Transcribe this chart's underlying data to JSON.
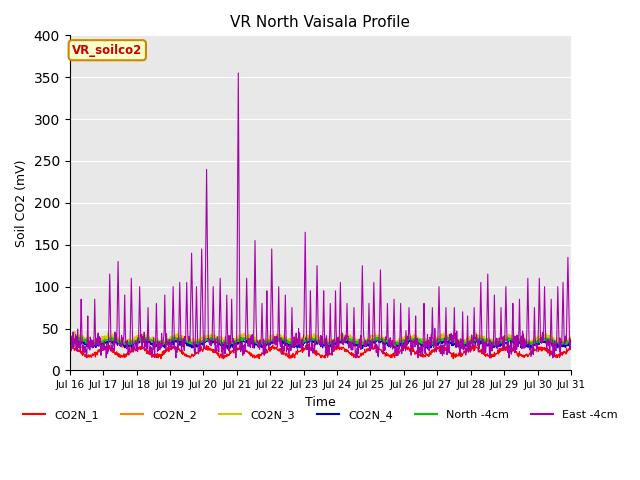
{
  "title": "VR North Vaisala Profile",
  "ylabel": "Soil CO2 (mV)",
  "xlabel": "Time",
  "annotation": "VR_soilco2",
  "ylim": [
    0,
    400
  ],
  "plot_bg": "#e8e8e8",
  "fig_bg": "#ffffff",
  "grid_color": "#ffffff",
  "series_colors": {
    "CO2N_1": "#ff0000",
    "CO2N_2": "#ff8800",
    "CO2N_3": "#cccc00",
    "CO2N_4": "#0000cc",
    "North -4cm": "#00cc00",
    "East -4cm": "#aa00aa"
  },
  "x_tick_labels": [
    "Jul 16",
    "Jul 17",
    "Jul 18",
    "Jul 19",
    "Jul 20",
    "Jul 21",
    "Jul 22",
    "Jul 23",
    "Jul 24",
    "Jul 25",
    "Jul 26",
    "Jul 27",
    "Jul 28",
    "Jul 29",
    "Jul 30",
    "Jul 31"
  ],
  "n_points": 1440,
  "seed": 42,
  "annotation_facecolor": "#ffffcc",
  "annotation_edgecolor": "#cc8800",
  "annotation_textcolor": "#cc0000"
}
